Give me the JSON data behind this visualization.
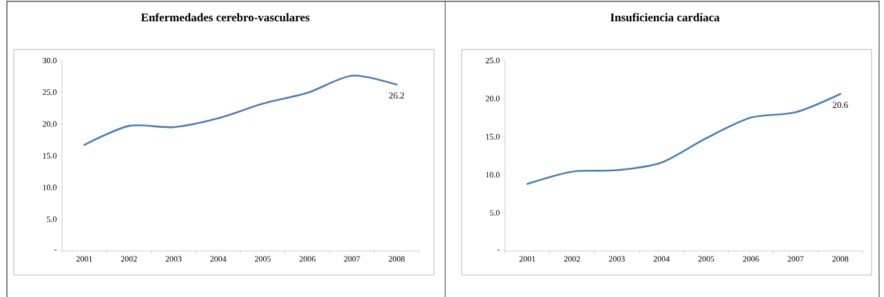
{
  "chart_data": [
    {
      "type": "line",
      "title": "Enfermedades cerebro-vasculares",
      "categories": [
        "2001",
        "2002",
        "2003",
        "2004",
        "2005",
        "2006",
        "2007",
        "2008"
      ],
      "values": [
        16.7,
        19.7,
        19.5,
        20.9,
        23.2,
        24.9,
        27.6,
        26.2
      ],
      "value_labels": [
        null,
        null,
        null,
        null,
        null,
        null,
        null,
        "26.2"
      ],
      "color": "#4a7ebb",
      "ylim": [
        0,
        30
      ],
      "yticks": [
        {
          "value": 0,
          "label": "-"
        },
        {
          "value": 5,
          "label": "5.0"
        },
        {
          "value": 10,
          "label": "10.0"
        },
        {
          "value": 15,
          "label": "15.0"
        },
        {
          "value": 20,
          "label": "20.0"
        },
        {
          "value": 25,
          "label": "25.0"
        },
        {
          "value": 30,
          "label": "30.0"
        }
      ],
      "grid": false
    },
    {
      "type": "line",
      "title": "Insuficiencia cardíaca",
      "categories": [
        "2001",
        "2002",
        "2003",
        "2004",
        "2005",
        "2006",
        "2007",
        "2008"
      ],
      "values": [
        8.8,
        10.4,
        10.6,
        11.6,
        14.8,
        17.5,
        18.2,
        20.6
      ],
      "value_labels": [
        null,
        null,
        null,
        null,
        null,
        null,
        null,
        "20.6"
      ],
      "color": "#4a7ebb",
      "ylim": [
        0,
        25
      ],
      "yticks": [
        {
          "value": 0,
          "label": "-"
        },
        {
          "value": 5,
          "label": "5.0"
        },
        {
          "value": 10,
          "label": "10.0"
        },
        {
          "value": 15,
          "label": "15.0"
        },
        {
          "value": 20,
          "label": "20.0"
        },
        {
          "value": 25,
          "label": "25.0"
        }
      ],
      "grid": false
    }
  ]
}
